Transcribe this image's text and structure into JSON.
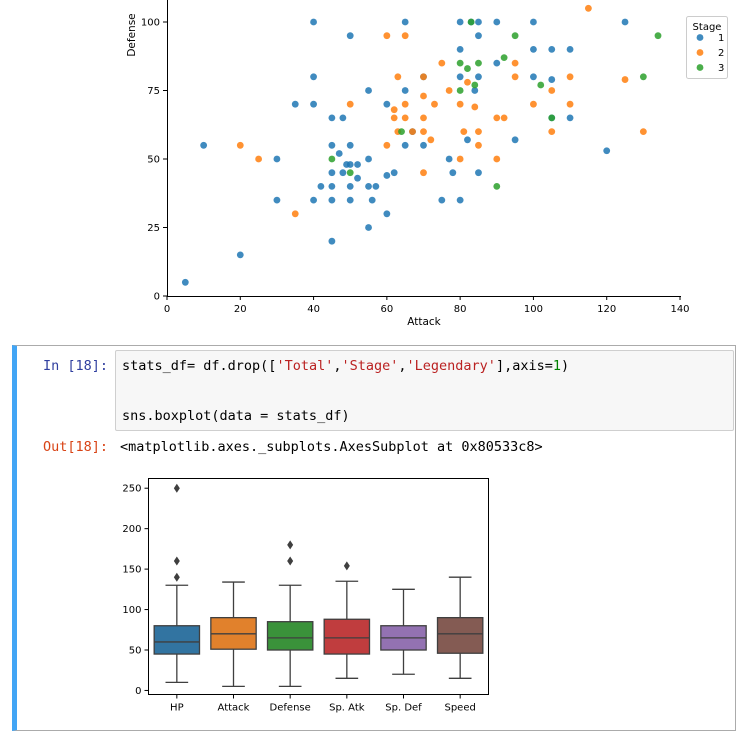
{
  "notebook": {
    "cell_in_prompt": "In [18]:",
    "cell_out_prompt": "Out[18]:",
    "code_lines": [
      {
        "segments": [
          {
            "t": "stats_df= df.drop([",
            "c": ""
          },
          {
            "t": "'Total'",
            "c": "str"
          },
          {
            "t": ",",
            "c": ""
          },
          {
            "t": "'Stage'",
            "c": "str"
          },
          {
            "t": ",",
            "c": ""
          },
          {
            "t": "'Legendary'",
            "c": "str"
          },
          {
            "t": "],axis=",
            "c": ""
          },
          {
            "t": "1",
            "c": "num"
          },
          {
            "t": ")",
            "c": ""
          }
        ]
      },
      {
        "segments": [
          {
            "t": "sns.boxplot(data = stats_df)",
            "c": ""
          }
        ]
      }
    ],
    "output_text": "<matplotlib.axes._subplots.AxesSubplot at 0x80533c8>"
  },
  "chart_data": [
    {
      "type": "scatter",
      "title": "",
      "xlabel": "Attack",
      "ylabel": "Defense",
      "xlim": [
        0,
        140
      ],
      "ylim": [
        0,
        108
      ],
      "x_ticks": [
        0,
        20,
        40,
        60,
        80,
        100,
        120,
        140
      ],
      "y_ticks": [
        0,
        25,
        50,
        75,
        100
      ],
      "legend": {
        "title": "Stage",
        "position": "right",
        "entries": [
          "1",
          "2",
          "3"
        ]
      },
      "series": [
        {
          "name": "1",
          "color": "#1f77b4",
          "points": [
            [
              5,
              5
            ],
            [
              10,
              55
            ],
            [
              20,
              15
            ],
            [
              30,
              50
            ],
            [
              30,
              35
            ],
            [
              35,
              70
            ],
            [
              40,
              100
            ],
            [
              40,
              80
            ],
            [
              40,
              70
            ],
            [
              40,
              35
            ],
            [
              42,
              40
            ],
            [
              45,
              65
            ],
            [
              45,
              55
            ],
            [
              45,
              45
            ],
            [
              45,
              40
            ],
            [
              45,
              35
            ],
            [
              45,
              20
            ],
            [
              47,
              52
            ],
            [
              48,
              65
            ],
            [
              48,
              45
            ],
            [
              49,
              48
            ],
            [
              50,
              95
            ],
            [
              50,
              55
            ],
            [
              50,
              48
            ],
            [
              50,
              40
            ],
            [
              50,
              35
            ],
            [
              52,
              43
            ],
            [
              52,
              48
            ],
            [
              55,
              75
            ],
            [
              55,
              50
            ],
            [
              55,
              40
            ],
            [
              55,
              25
            ],
            [
              56,
              35
            ],
            [
              57,
              40
            ],
            [
              60,
              70
            ],
            [
              60,
              44
            ],
            [
              60,
              30
            ],
            [
              62,
              45
            ],
            [
              65,
              100
            ],
            [
              65,
              75
            ],
            [
              65,
              55
            ],
            [
              67,
              60
            ],
            [
              70,
              80
            ],
            [
              70,
              55
            ],
            [
              75,
              35
            ],
            [
              77,
              50
            ],
            [
              78,
              45
            ],
            [
              80,
              100
            ],
            [
              80,
              90
            ],
            [
              80,
              80
            ],
            [
              80,
              35
            ],
            [
              82,
              57
            ],
            [
              83,
              100
            ],
            [
              84,
              75
            ],
            [
              85,
              100
            ],
            [
              85,
              95
            ],
            [
              85,
              80
            ],
            [
              85,
              45
            ],
            [
              90,
              85
            ],
            [
              90,
              100
            ],
            [
              95,
              57
            ],
            [
              100,
              100
            ],
            [
              100,
              90
            ],
            [
              100,
              80
            ],
            [
              105,
              90
            ],
            [
              105,
              79
            ],
            [
              105,
              65
            ],
            [
              110,
              90
            ],
            [
              110,
              65
            ],
            [
              120,
              53
            ],
            [
              125,
              100
            ]
          ]
        },
        {
          "name": "2",
          "color": "#ff7f0e",
          "points": [
            [
              20,
              55
            ],
            [
              25,
              50
            ],
            [
              35,
              30
            ],
            [
              50,
              70
            ],
            [
              60,
              95
            ],
            [
              60,
              55
            ],
            [
              62,
              65
            ],
            [
              62,
              68
            ],
            [
              63,
              80
            ],
            [
              63,
              60
            ],
            [
              65,
              95
            ],
            [
              65,
              70
            ],
            [
              65,
              65
            ],
            [
              67,
              60
            ],
            [
              70,
              80
            ],
            [
              70,
              73
            ],
            [
              70,
              65
            ],
            [
              70,
              60
            ],
            [
              70,
              45
            ],
            [
              72,
              57
            ],
            [
              73,
              70
            ],
            [
              75,
              85
            ],
            [
              77,
              75
            ],
            [
              80,
              70
            ],
            [
              80,
              50
            ],
            [
              81,
              60
            ],
            [
              82,
              78
            ],
            [
              84,
              69
            ],
            [
              85,
              60
            ],
            [
              85,
              55
            ],
            [
              90,
              65
            ],
            [
              90,
              50
            ],
            [
              92,
              65
            ],
            [
              95,
              80
            ],
            [
              95,
              85
            ],
            [
              100,
              70
            ],
            [
              105,
              75
            ],
            [
              105,
              60
            ],
            [
              110,
              80
            ],
            [
              110,
              70
            ],
            [
              115,
              105
            ],
            [
              125,
              79
            ],
            [
              130,
              60
            ]
          ]
        },
        {
          "name": "3",
          "color": "#2ca02c",
          "points": [
            [
              45,
              50
            ],
            [
              50,
              45
            ],
            [
              64,
              60
            ],
            [
              80,
              75
            ],
            [
              80,
              85
            ],
            [
              82,
              83
            ],
            [
              83,
              100
            ],
            [
              84,
              77
            ],
            [
              85,
              85
            ],
            [
              90,
              40
            ],
            [
              92,
              87
            ],
            [
              95,
              95
            ],
            [
              102,
              77
            ],
            [
              105,
              65
            ],
            [
              130,
              80
            ],
            [
              134,
              95
            ]
          ]
        }
      ]
    },
    {
      "type": "box",
      "title": "",
      "xlabel": "",
      "ylabel": "",
      "categories": [
        "HP",
        "Attack",
        "Defense",
        "Sp. Atk",
        "Sp. Def",
        "Speed"
      ],
      "ylim": [
        -5,
        262
      ],
      "y_ticks": [
        0,
        50,
        100,
        150,
        200,
        250
      ],
      "boxes": [
        {
          "name": "HP",
          "color": "#3274a1",
          "min": 10,
          "q1": 45,
          "median": 60,
          "q3": 80,
          "max": 130,
          "outliers": [
            140,
            160,
            250
          ]
        },
        {
          "name": "Attack",
          "color": "#e1812c",
          "min": 5,
          "q1": 51,
          "median": 70,
          "q3": 90,
          "max": 134,
          "outliers": []
        },
        {
          "name": "Defense",
          "color": "#3a923a",
          "min": 5,
          "q1": 50,
          "median": 65,
          "q3": 85,
          "max": 130,
          "outliers": [
            160,
            180
          ]
        },
        {
          "name": "Sp. Atk",
          "color": "#c03d3e",
          "min": 15,
          "q1": 45,
          "median": 65,
          "q3": 88,
          "max": 135,
          "outliers": [
            154
          ]
        },
        {
          "name": "Sp. Def",
          "color": "#9372b2",
          "min": 20,
          "q1": 50,
          "median": 65,
          "q3": 80,
          "max": 125,
          "outliers": []
        },
        {
          "name": "Speed",
          "color": "#845b53",
          "min": 15,
          "q1": 46,
          "median": 70,
          "q3": 90,
          "max": 140,
          "outliers": []
        }
      ]
    }
  ]
}
